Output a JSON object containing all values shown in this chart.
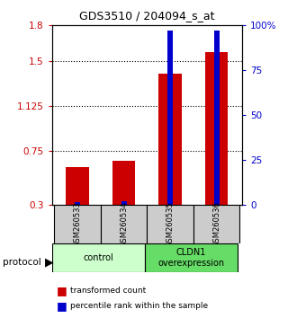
{
  "title": "GDS3510 / 204094_s_at",
  "samples": [
    "GSM260533",
    "GSM260534",
    "GSM260535",
    "GSM260536"
  ],
  "red_values": [
    0.62,
    0.67,
    1.4,
    1.575
  ],
  "blue_pct": [
    1.5,
    2.0,
    97.0,
    97.0
  ],
  "y_min": 0.3,
  "y_max": 1.8,
  "y_ticks_left": [
    0.3,
    0.75,
    1.125,
    1.5,
    1.8
  ],
  "y_ticks_right_vals": [
    0,
    25,
    50,
    75,
    100
  ],
  "y_ticks_right_labels": [
    "0",
    "25",
    "50",
    "75",
    "100%"
  ],
  "dotted_lines": [
    0.75,
    1.125,
    1.5
  ],
  "bar_color_red": "#cc0000",
  "bar_color_blue": "#0000cc",
  "red_bar_width": 0.5,
  "blue_bar_width": 0.12,
  "left_tick_color": "#cc0000",
  "right_tick_color": "#0000cc",
  "legend_red": "transformed count",
  "legend_blue": "percentile rank within the sample",
  "group_bg_color_control": "#ccffcc",
  "group_bg_color_cldn1": "#66dd66",
  "sample_box_color": "#cccccc"
}
